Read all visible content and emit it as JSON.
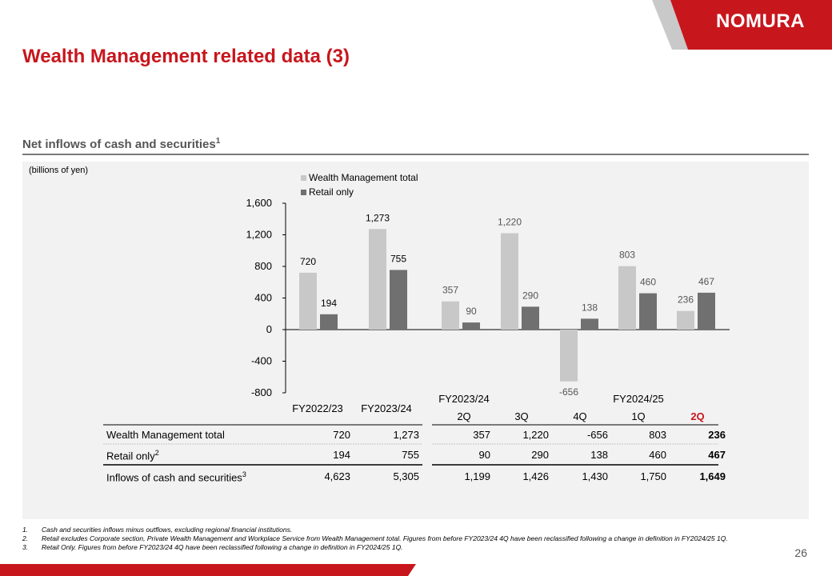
{
  "brand": {
    "logo_text": "NOMURA",
    "red": "#c8161d",
    "grey": "#bdbdbd"
  },
  "title": "Wealth Management related data (3)",
  "section": {
    "title": "Net inflows of cash and securities",
    "title_sup": "1"
  },
  "unit_label": "(billions of yen)",
  "chart_data": {
    "type": "bar",
    "categories": [
      "FY2022/23",
      "FY2023/24",
      "2Q",
      "3Q",
      "4Q",
      "1Q",
      "2Q"
    ],
    "category_groups": [
      {
        "label": "FY2023/24",
        "members": [
          "2Q",
          "3Q",
          "4Q"
        ]
      },
      {
        "label": "FY2024/25",
        "members": [
          "1Q",
          "2Q"
        ]
      }
    ],
    "series": [
      {
        "name": "Wealth Management total",
        "values": [
          720,
          1273,
          357,
          1220,
          -656,
          803,
          236
        ],
        "color": "#c8c8c8"
      },
      {
        "name": "Retail only",
        "values": [
          194,
          755,
          90,
          290,
          138,
          460,
          467
        ],
        "color": "#707070"
      }
    ],
    "data_labels": {
      "wm": [
        "720",
        "1,273",
        "357",
        "1,220",
        "-656",
        "803",
        "236"
      ],
      "retail": [
        "194",
        "755",
        "90",
        "290",
        "138",
        "460",
        "467"
      ]
    },
    "y_ticks": [
      "1,600",
      "1,200",
      "800",
      "400",
      "0",
      "-400",
      "-800"
    ],
    "ylim": [
      -800,
      1600
    ],
    "legend_position": "top",
    "grid": false
  },
  "table": {
    "headers": {
      "annual": [
        "FY2022/23",
        "FY2023/24"
      ],
      "group1": "FY2023/24",
      "group2": "FY2024/25",
      "quarters": [
        "2Q",
        "3Q",
        "4Q",
        "1Q",
        "2Q"
      ]
    },
    "rows": [
      {
        "label": "Wealth Management total",
        "sup": "",
        "values": [
          "720",
          "1,273",
          "357",
          "1,220",
          "-656",
          "803",
          "236"
        ]
      },
      {
        "label": "Retail only",
        "sup": "2",
        "values": [
          "194",
          "755",
          "90",
          "290",
          "138",
          "460",
          "467"
        ]
      },
      {
        "label": "Inflows of cash and securities",
        "sup": "3",
        "values": [
          "4,623",
          "5,305",
          "1,199",
          "1,426",
          "1,430",
          "1,750",
          "1,649"
        ]
      }
    ]
  },
  "footnotes": [
    {
      "num": "1.",
      "text": "Cash and securities inflows minus outflows, excluding regional financial institutions."
    },
    {
      "num": "2.",
      "text": "Retail excludes Corporate section, Private Wealth Management and Workplace Service from Wealth Management total. Figures from before FY2023/24 4Q have been reclassified following a change in definition in FY2024/25 1Q."
    },
    {
      "num": "3.",
      "text": "Retail Only. Figures from before FY2023/24 4Q have been reclassified following a change in definition in FY2024/25 1Q."
    }
  ],
  "page_number": "26"
}
